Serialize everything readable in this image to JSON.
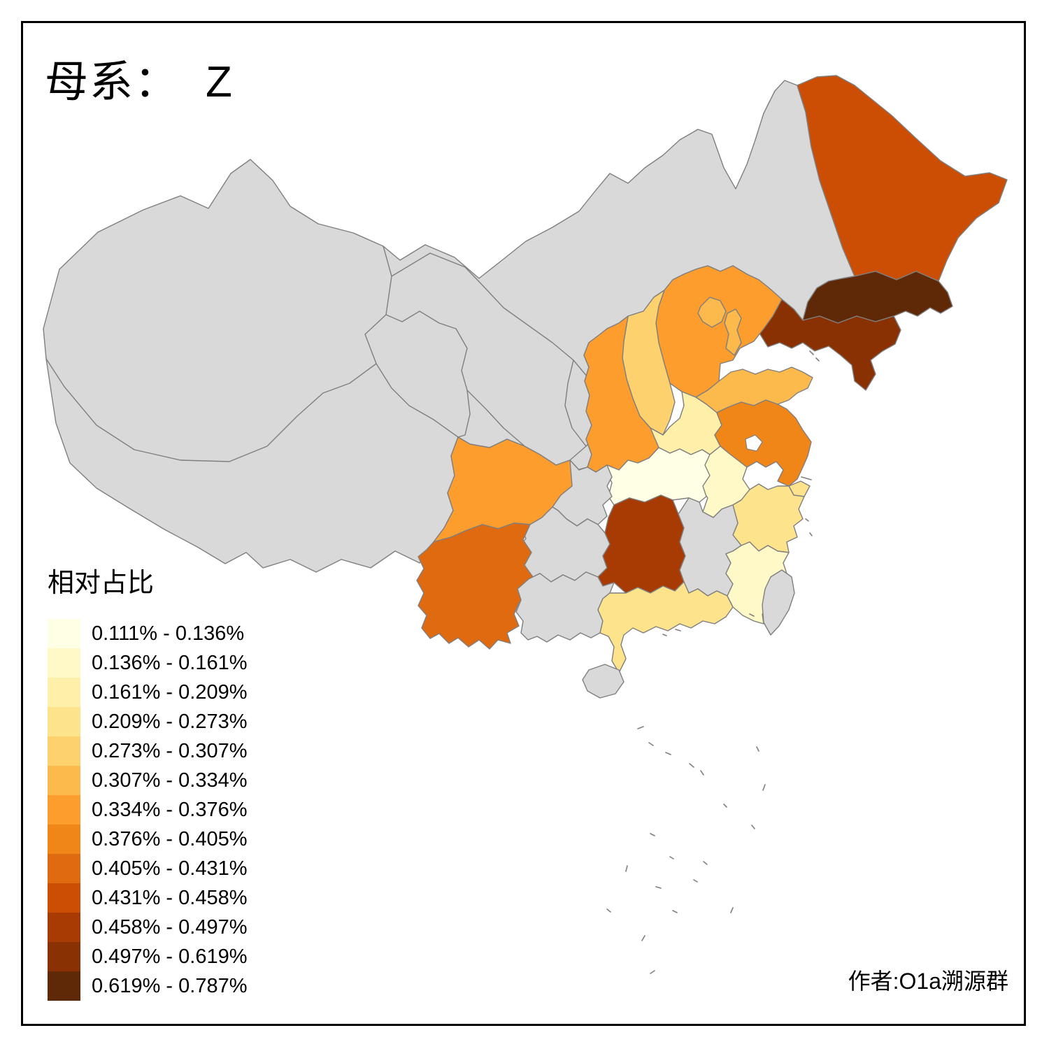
{
  "title": {
    "prefix": "母系：",
    "variant": "Z"
  },
  "author": "作者:O1a溯源群",
  "legend": {
    "title": "相对占比",
    "classes": [
      {
        "label": "0.111% - 0.136%",
        "color": "#FFFFE5"
      },
      {
        "label": "0.136% - 0.161%",
        "color": "#FFF9C8"
      },
      {
        "label": "0.161% - 0.209%",
        "color": "#FEEFA9"
      },
      {
        "label": "0.209% - 0.273%",
        "color": "#FDE38C"
      },
      {
        "label": "0.273% - 0.307%",
        "color": "#FDD26E"
      },
      {
        "label": "0.307% - 0.334%",
        "color": "#FDBA4C"
      },
      {
        "label": "0.334% - 0.376%",
        "color": "#FD9D2D"
      },
      {
        "label": "0.376% - 0.405%",
        "color": "#F08518"
      },
      {
        "label": "0.405% - 0.431%",
        "color": "#E06A10"
      },
      {
        "label": "0.431% - 0.458%",
        "color": "#CC4E04"
      },
      {
        "label": "0.458% - 0.497%",
        "color": "#A83B03"
      },
      {
        "label": "0.497% - 0.619%",
        "color": "#8A3104"
      },
      {
        "label": "0.619% - 0.787%",
        "color": "#5F2806"
      }
    ]
  },
  "map": {
    "no_data_color": "#D9D9D9",
    "border_color": "#7F7F7F",
    "sea_color": "#FFFFFF",
    "provinces": [
      {
        "id": "west-region",
        "name": "Xinjiang-Tibet-Qinghai-Gansu-Ningxia-InnerMongolia",
        "class_index": null
      },
      {
        "id": "heilongjiang",
        "name": "Heilongjiang",
        "class_index": 9
      },
      {
        "id": "jilin",
        "name": "Jilin",
        "class_index": 12
      },
      {
        "id": "liaoning",
        "name": "Liaoning",
        "class_index": 11
      },
      {
        "id": "hebei",
        "name": "Hebei",
        "class_index": 6
      },
      {
        "id": "beijing",
        "name": "Beijing",
        "class_index": 5
      },
      {
        "id": "tianjin",
        "name": "Tianjin",
        "class_index": 5
      },
      {
        "id": "shanxi",
        "name": "Shanxi",
        "class_index": 4
      },
      {
        "id": "shaanxi",
        "name": "Shaanxi",
        "class_index": 6
      },
      {
        "id": "shandong",
        "name": "Shandong",
        "class_index": 5
      },
      {
        "id": "henan",
        "name": "Henan",
        "class_index": 2
      },
      {
        "id": "jiangsu",
        "name": "Jiangsu",
        "class_index": 7
      },
      {
        "id": "anhui",
        "name": "Anhui",
        "class_index": 1
      },
      {
        "id": "shanghai",
        "name": "Shanghai",
        "class_index": 3
      },
      {
        "id": "hubei",
        "name": "Hubei",
        "class_index": 0
      },
      {
        "id": "zhejiang",
        "name": "Zhejiang",
        "class_index": 3
      },
      {
        "id": "fujian",
        "name": "Fujian",
        "class_index": 1
      },
      {
        "id": "hunan",
        "name": "Hunan",
        "class_index": 10
      },
      {
        "id": "guangdong",
        "name": "Guangdong",
        "class_index": 3
      },
      {
        "id": "sichuan",
        "name": "Sichuan",
        "class_index": 6
      },
      {
        "id": "yunnan",
        "name": "Yunnan",
        "class_index": 8
      },
      {
        "id": "chongqing",
        "name": "Chongqing",
        "class_index": null
      },
      {
        "id": "guizhou",
        "name": "Guizhou",
        "class_index": null
      },
      {
        "id": "guangxi",
        "name": "Guangxi",
        "class_index": null
      },
      {
        "id": "jiangxi",
        "name": "Jiangxi",
        "class_index": null
      },
      {
        "id": "taiwan",
        "name": "Taiwan",
        "class_index": null
      },
      {
        "id": "hainan",
        "name": "Hainan",
        "class_index": null
      }
    ]
  }
}
